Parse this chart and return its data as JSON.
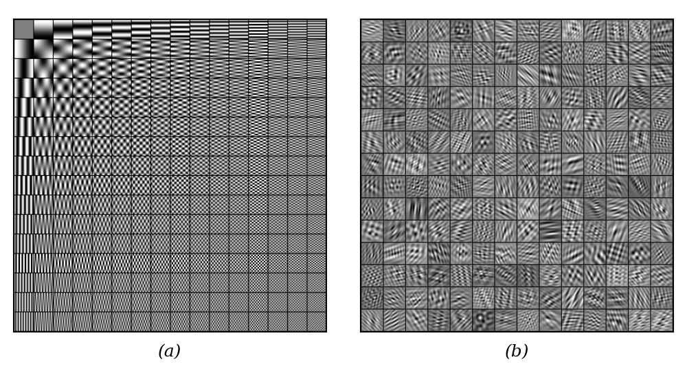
{
  "title_a": "(a)",
  "title_b": "(b)",
  "grid_size_a": 16,
  "patch_size_a": 24,
  "grid_size_b": 14,
  "patch_size_b": 28,
  "figsize": [
    10.0,
    5.43
  ],
  "dpi": 100,
  "label_fontsize": 18
}
